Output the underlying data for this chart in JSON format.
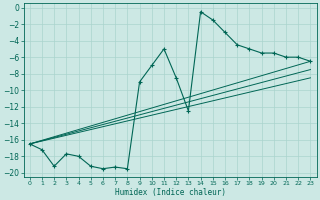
{
  "title": "",
  "xlabel": "Humidex (Indice chaleur)",
  "ylabel": "",
  "bg_color": "#cce8e4",
  "grid_color": "#aad4ce",
  "line_color": "#006655",
  "xlim": [
    -0.5,
    23.5
  ],
  "ylim": [
    -20.5,
    0.5
  ],
  "xticks": [
    0,
    1,
    2,
    3,
    4,
    5,
    6,
    7,
    8,
    9,
    10,
    11,
    12,
    13,
    14,
    15,
    16,
    17,
    18,
    19,
    20,
    21,
    22,
    23
  ],
  "yticks": [
    0,
    -2,
    -4,
    -6,
    -8,
    -10,
    -12,
    -14,
    -16,
    -18,
    -20
  ],
  "main_x": [
    0,
    1,
    2,
    3,
    4,
    5,
    6,
    7,
    8,
    9,
    10,
    11,
    12,
    13,
    14,
    15,
    16,
    17,
    18,
    19,
    20,
    21,
    22,
    23
  ],
  "main_y": [
    -16.5,
    -17.2,
    -19.2,
    -17.7,
    -18.0,
    -19.2,
    -19.5,
    -19.3,
    -19.5,
    -9.0,
    -7.0,
    -5.0,
    -8.5,
    -12.5,
    -0.5,
    -1.5,
    -3.0,
    -4.5,
    -5.0,
    -5.5,
    -5.5,
    -6.0,
    -6.0,
    -6.5
  ],
  "line1_x": [
    0,
    23
  ],
  "line1_y": [
    -16.5,
    -6.5
  ],
  "line2_x": [
    0,
    23
  ],
  "line2_y": [
    -16.5,
    -7.5
  ],
  "line3_x": [
    0,
    23
  ],
  "line3_y": [
    -16.5,
    -8.5
  ]
}
